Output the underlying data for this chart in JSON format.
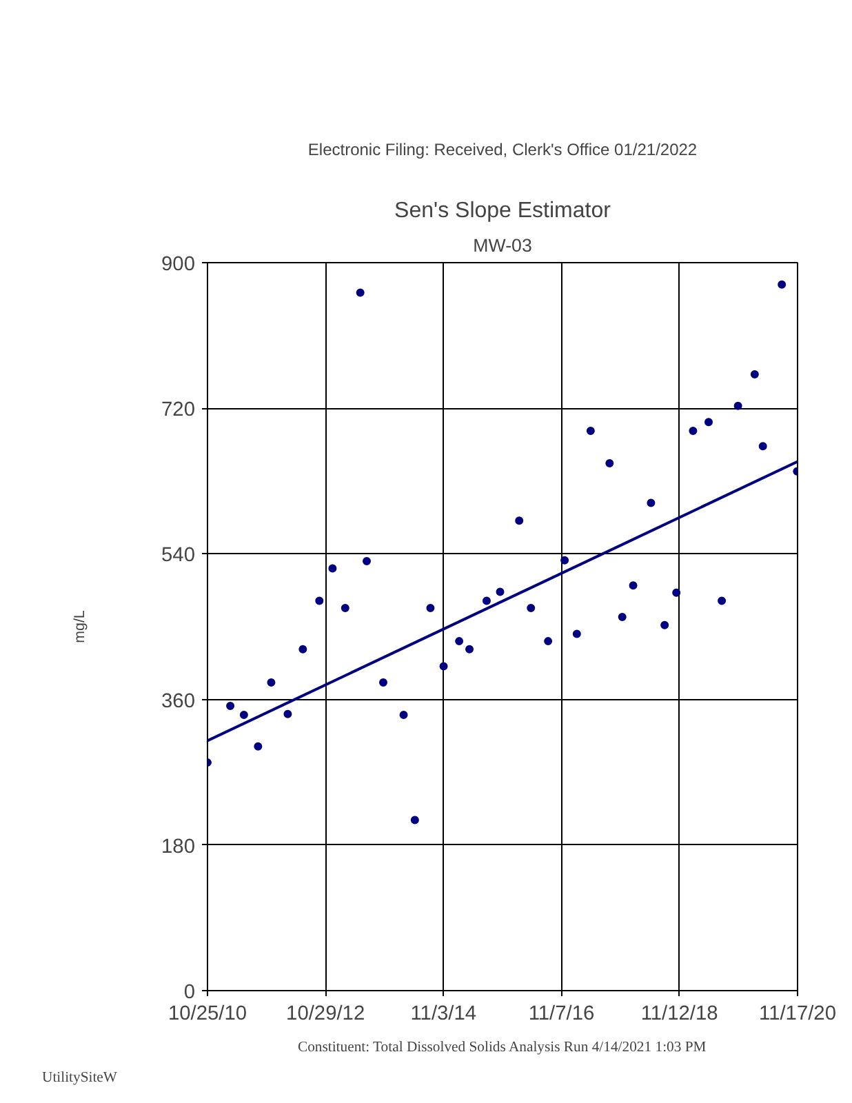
{
  "chart_data": {
    "type": "scatter",
    "title": "Sen's Slope Estimator",
    "subtitle": "MW-03",
    "ylabel": "mg/L",
    "annotations": [
      "Electronic Filing: Received, Clerk's Office 01/21/2022",
      "Constituent: Total Dissolved Solids Analysis Run 4/14/2021 1:03 PM",
      "UtilitySiteW"
    ],
    "xlim": [
      "2010-10-25",
      "2020-11-17"
    ],
    "xticks": [
      {
        "value": "2010-10-25",
        "label": "10/25/10"
      },
      {
        "value": "2012-10-29",
        "label": "10/29/12"
      },
      {
        "value": "2014-11-03",
        "label": "11/3/14"
      },
      {
        "value": "2016-11-07",
        "label": "11/7/16"
      },
      {
        "value": "2018-11-12",
        "label": "11/12/18"
      },
      {
        "value": "2020-11-17",
        "label": "11/17/20"
      }
    ],
    "ylim": [
      0,
      900
    ],
    "yticks": [
      0,
      180,
      360,
      540,
      720,
      900
    ],
    "grid": true,
    "series": [
      {
        "color": "#000080",
        "marker": "circle",
        "x": [
          "2010-10-25",
          "2011-03-16",
          "2011-06-09",
          "2011-09-05",
          "2011-11-26",
          "2012-03-08",
          "2012-06-10",
          "2012-09-21",
          "2012-12-12",
          "2013-03-01",
          "2013-06-03",
          "2013-07-13",
          "2013-10-24",
          "2014-02-28",
          "2014-05-09",
          "2014-08-14",
          "2014-11-04",
          "2015-02-09",
          "2015-04-14",
          "2015-07-30",
          "2015-10-22",
          "2016-02-18",
          "2016-05-01",
          "2016-08-16",
          "2016-11-27",
          "2017-02-11",
          "2017-05-08",
          "2017-09-03",
          "2017-11-21",
          "2018-01-28",
          "2018-05-19",
          "2018-08-12",
          "2018-10-24",
          "2019-02-05",
          "2019-05-13",
          "2019-08-03",
          "2019-11-12",
          "2020-02-24",
          "2020-04-15",
          "2020-08-11",
          "2020-11-14"
        ],
        "values": [
          282,
          352,
          341,
          302,
          381,
          342,
          422,
          482,
          522,
          473,
          863,
          531,
          381,
          341,
          211,
          473,
          401,
          432,
          422,
          482,
          493,
          581,
          473,
          432,
          532,
          441,
          692,
          652,
          462,
          501,
          603,
          452,
          492,
          692,
          703,
          482,
          723,
          762,
          673,
          873,
          642
        ]
      },
      {
        "type": "line",
        "color": "#000080",
        "x": [
          "2010-10-25",
          "2020-11-17"
        ],
        "values": [
          309,
          654
        ]
      }
    ]
  }
}
